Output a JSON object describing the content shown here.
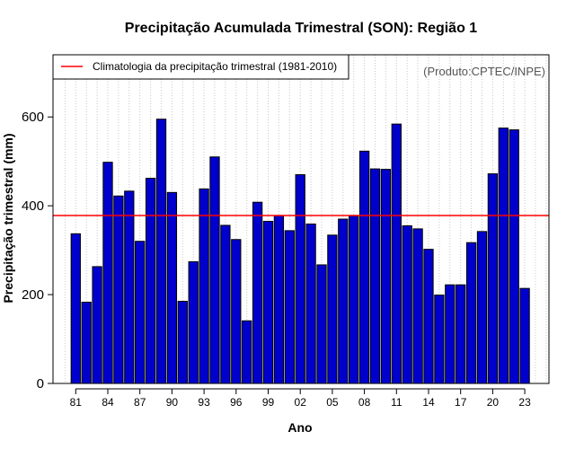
{
  "chart_data": {
    "type": "bar",
    "title": "Precipitação Acumulada Trimestral (SON): Região 1",
    "xlabel": "Ano",
    "ylabel": "Precipitação trimestral (mm)",
    "ylim": [
      0,
      740
    ],
    "yticks": [
      0,
      200,
      400,
      600
    ],
    "xtick_labels": [
      "81",
      "84",
      "87",
      "90",
      "93",
      "96",
      "99",
      "02",
      "05",
      "08",
      "11",
      "14",
      "17",
      "20",
      "23"
    ],
    "xtick_indices": [
      0,
      3,
      6,
      9,
      12,
      15,
      18,
      21,
      24,
      27,
      30,
      33,
      36,
      39,
      42
    ],
    "categories": [
      "1981",
      "1982",
      "1983",
      "1984",
      "1985",
      "1986",
      "1987",
      "1988",
      "1989",
      "1990",
      "1991",
      "1992",
      "1993",
      "1994",
      "1995",
      "1996",
      "1997",
      "1998",
      "1999",
      "2000",
      "2001",
      "2002",
      "2003",
      "2004",
      "2005",
      "2006",
      "2007",
      "2008",
      "2009",
      "2010",
      "2011",
      "2012",
      "2013",
      "2014",
      "2015",
      "2016",
      "2017",
      "2018",
      "2019",
      "2020",
      "2021",
      "2022",
      "2023"
    ],
    "values": [
      337,
      183,
      263,
      498,
      422,
      433,
      320,
      462,
      595,
      430,
      185,
      274,
      438,
      510,
      356,
      324,
      141,
      408,
      365,
      378,
      344,
      470,
      359,
      267,
      334,
      370,
      377,
      523,
      483,
      482,
      584,
      355,
      348,
      302,
      199,
      222,
      222,
      317,
      342,
      472,
      575,
      571,
      214
    ],
    "bar_color": "#0000cd",
    "reference_line": {
      "label": "Climatologia da precipitação trimestral (1981-2010)",
      "value": 378,
      "color": "#ff0000"
    },
    "annotation": "(Produto:CPTEC/INPE)",
    "grid": "vertical-dotted",
    "legend_position": "top-left"
  }
}
